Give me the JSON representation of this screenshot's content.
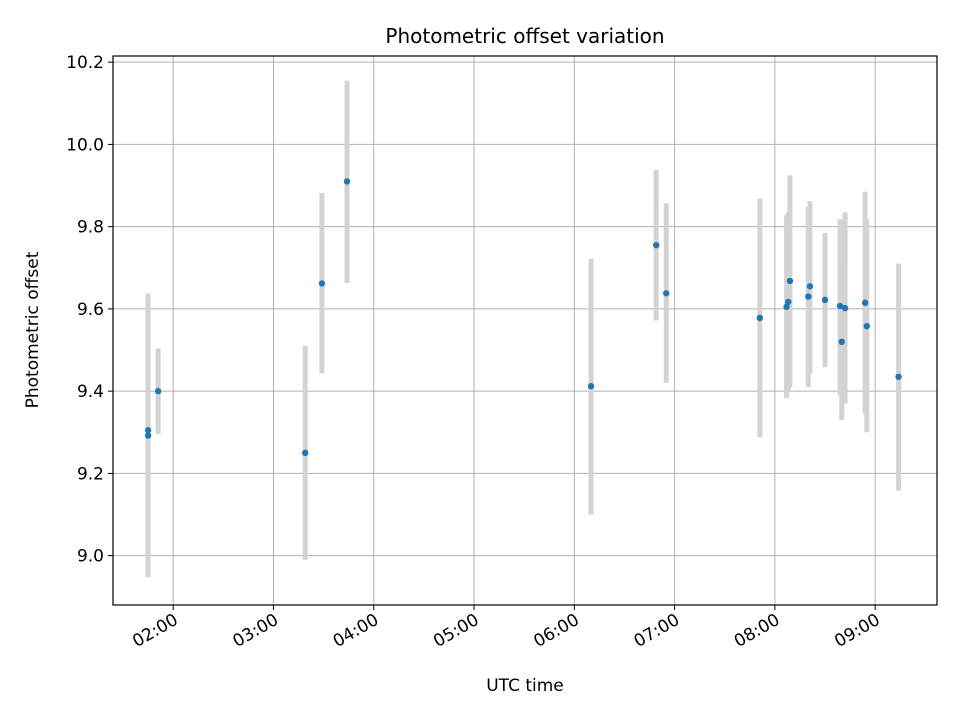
{
  "chart_data": {
    "type": "scatter",
    "title": "Photometric offset variation",
    "xlabel": "UTC time",
    "ylabel": "Photometric offset",
    "x_axis": "time",
    "xlim": [
      "01:24",
      "09:37"
    ],
    "ylim": [
      8.88,
      10.215
    ],
    "x_ticks": [
      "02:00",
      "03:00",
      "04:00",
      "05:00",
      "06:00",
      "07:00",
      "08:00",
      "09:00"
    ],
    "y_ticks": [
      "9.0",
      "9.2",
      "9.4",
      "9.6",
      "9.8",
      "10.0",
      "10.2"
    ],
    "grid": true,
    "point_color": "#1f77b4",
    "errorbar_color": "#d3d3d3",
    "points": [
      {
        "x": "01:45",
        "y": 9.305,
        "yerr_low": 8.948,
        "yerr_high": 9.637
      },
      {
        "x": "01:45",
        "y": 9.292,
        "yerr_low": 8.948,
        "yerr_high": 9.637
      },
      {
        "x": "01:51",
        "y": 9.4,
        "yerr_low": 9.296,
        "yerr_high": 9.504
      },
      {
        "x": "03:19",
        "y": 9.25,
        "yerr_low": 8.99,
        "yerr_high": 9.51
      },
      {
        "x": "03:29",
        "y": 9.662,
        "yerr_low": 9.443,
        "yerr_high": 9.882
      },
      {
        "x": "03:44",
        "y": 9.91,
        "yerr_low": 9.663,
        "yerr_high": 10.155
      },
      {
        "x": "06:10",
        "y": 9.412,
        "yerr_low": 9.1,
        "yerr_high": 9.722
      },
      {
        "x": "06:49",
        "y": 9.755,
        "yerr_low": 9.572,
        "yerr_high": 9.938
      },
      {
        "x": "06:55",
        "y": 9.638,
        "yerr_low": 9.42,
        "yerr_high": 9.857
      },
      {
        "x": "07:51",
        "y": 9.578,
        "yerr_low": 9.288,
        "yerr_high": 9.868
      },
      {
        "x": "08:07",
        "y": 9.605,
        "yerr_low": 9.383,
        "yerr_high": 9.827
      },
      {
        "x": "08:08",
        "y": 9.617,
        "yerr_low": 9.4,
        "yerr_high": 9.835
      },
      {
        "x": "08:09",
        "y": 9.668,
        "yerr_low": 9.41,
        "yerr_high": 9.925
      },
      {
        "x": "08:20",
        "y": 9.63,
        "yerr_low": 9.41,
        "yerr_high": 9.848
      },
      {
        "x": "08:21",
        "y": 9.655,
        "yerr_low": 9.443,
        "yerr_high": 9.862
      },
      {
        "x": "08:30",
        "y": 9.622,
        "yerr_low": 9.458,
        "yerr_high": 9.785
      },
      {
        "x": "08:39",
        "y": 9.607,
        "yerr_low": 9.39,
        "yerr_high": 9.818
      },
      {
        "x": "08:40",
        "y": 9.52,
        "yerr_low": 9.33,
        "yerr_high": 9.71
      },
      {
        "x": "08:42",
        "y": 9.602,
        "yerr_low": 9.37,
        "yerr_high": 9.835
      },
      {
        "x": "08:54",
        "y": 9.615,
        "yerr_low": 9.345,
        "yerr_high": 9.885
      },
      {
        "x": "08:55",
        "y": 9.558,
        "yerr_low": 9.3,
        "yerr_high": 9.818
      },
      {
        "x": "09:14",
        "y": 9.435,
        "yerr_low": 9.158,
        "yerr_high": 9.71
      }
    ]
  }
}
